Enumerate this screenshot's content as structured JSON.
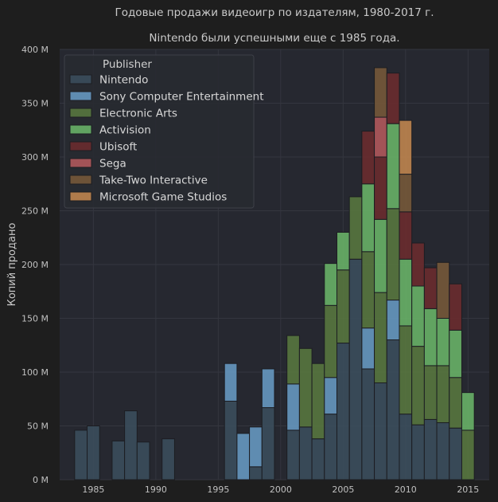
{
  "chart_data": {
    "type": "bar",
    "stacked": true,
    "title": "Годовые продажи видеоигр по издателям, 1980-2017 г.",
    "subtitle": "Nintendo были успешными еще с 1985 года.",
    "xlabel": "",
    "ylabel": "Копий продано",
    "xlim": [
      1982.3,
      2016.7
    ],
    "ylim": [
      0,
      400
    ],
    "x_ticks": [
      1985,
      1990,
      1995,
      2000,
      2005,
      2010,
      2015
    ],
    "y_ticks": [
      0,
      50,
      100,
      150,
      200,
      250,
      300,
      350,
      400
    ],
    "y_tick_labels": [
      "0 M",
      "50 M",
      "100 M",
      "150 M",
      "200 M",
      "250 M",
      "300 M",
      "350 M",
      "400 M"
    ],
    "grid": true,
    "legend_title": "Publisher",
    "legend_position": "top-left",
    "series": [
      {
        "name": "Nintendo",
        "color": "#3c4f5e",
        "data": {
          "1984": 46,
          "1985": 50,
          "1987": 36,
          "1988": 64,
          "1989": 35,
          "1991": 38,
          "1996": 73,
          "1997": 0,
          "1998": 12,
          "1999": 67,
          "2001": 46,
          "2002": 49,
          "2003": 38,
          "2004": 61,
          "2005": 127,
          "2006": 205,
          "2007": 103,
          "2008": 90,
          "2009": 130,
          "2010": 61,
          "2011": 51,
          "2012": 56,
          "2013": 53,
          "2014": 48
        }
      },
      {
        "name": "Sony Computer Entertainment",
        "color": "#6a9ec8",
        "data": {
          "1996": 35,
          "1997": 43,
          "1998": 37,
          "1999": 36,
          "2001": 43,
          "2002": 0,
          "2003": 0,
          "2004": 34,
          "2007": 38,
          "2009": 37
        }
      },
      {
        "name": "Electronic Arts",
        "color": "#5a7a40",
        "data": {
          "2001": 45,
          "2002": 73,
          "2003": 70,
          "2004": 67,
          "2005": 68,
          "2006": 58,
          "2007": 71,
          "2008": 84,
          "2009": 85,
          "2010": 82,
          "2011": 73,
          "2012": 50,
          "2013": 53,
          "2014": 47,
          "2015": 46
        }
      },
      {
        "name": "Activision",
        "color": "#6cb86a",
        "data": {
          "2004": 39,
          "2005": 35,
          "2007": 63,
          "2008": 68,
          "2009": 79,
          "2010": 62,
          "2011": 56,
          "2012": 53,
          "2013": 44,
          "2014": 44,
          "2015": 35
        }
      },
      {
        "name": "Ubisoft",
        "color": "#6e2c2e",
        "data": {
          "2007": 49,
          "2008": 58,
          "2009": 47,
          "2010": 44,
          "2011": 40,
          "2012": 38,
          "2014": 43
        }
      },
      {
        "name": "Sega",
        "color": "#b85a5e",
        "data": {
          "2008": 37
        }
      },
      {
        "name": "Take-Two Interactive",
        "color": "#7a5a3a",
        "data": {
          "2008": 46,
          "2010": 35,
          "2013": 52
        }
      },
      {
        "name": "Microsoft Game Studios",
        "color": "#c88a50",
        "data": {
          "2010": 50
        }
      }
    ]
  }
}
